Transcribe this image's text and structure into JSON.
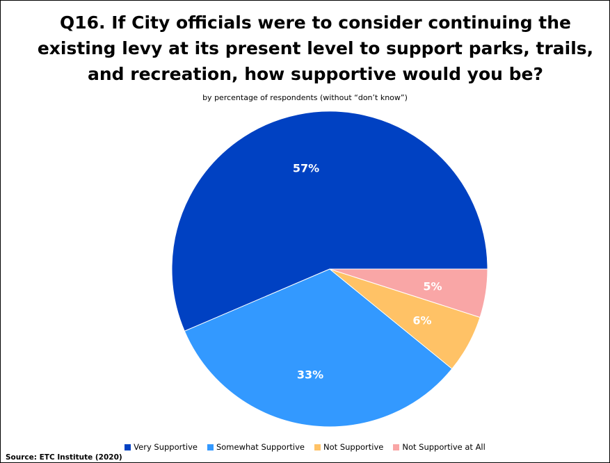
{
  "chart_data": {
    "type": "pie",
    "title": "Q16. If City officials were to consider continuing the existing levy at its present level to support parks, trails, and recreation, how supportive would you be?",
    "subtitle": "by percentage of respondents (without “don’t know”)",
    "categories": [
      "Very Supportive",
      "Somewhat Supportive",
      "Not Supportive",
      "Not Supportive at All"
    ],
    "values": [
      57,
      33,
      6,
      5
    ],
    "data_labels": [
      "57%",
      "33%",
      "6%",
      "5%"
    ],
    "colors": [
      "#0041C2",
      "#3399FF",
      "#FFC266",
      "#F9A6A6"
    ],
    "legend_position": "bottom",
    "source": "Source:  ETC Institute (2020)"
  }
}
